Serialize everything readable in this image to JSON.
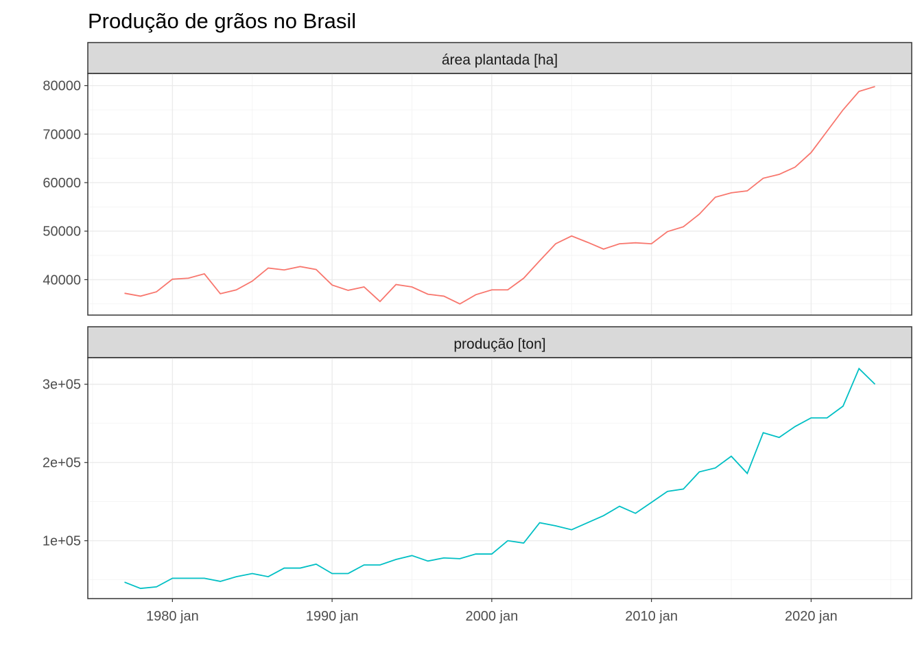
{
  "title": "Produção de grãos no Brasil",
  "chart_data": {
    "type": "line",
    "title": "Produção de grãos no Brasil",
    "xlabel": "",
    "ylabel": "",
    "x_tick_labels": [
      "1980 jan",
      "1990 jan",
      "2000 jan",
      "2010 jan",
      "2020 jan"
    ],
    "x_tick_years": [
      1980,
      1990,
      2000,
      2010,
      2020
    ],
    "xlim": [
      1974.7,
      2026.3
    ],
    "x": [
      1977,
      1978,
      1979,
      1980,
      1981,
      1982,
      1983,
      1984,
      1985,
      1986,
      1987,
      1988,
      1989,
      1990,
      1991,
      1992,
      1993,
      1994,
      1995,
      1996,
      1997,
      1998,
      1999,
      2000,
      2001,
      2002,
      2003,
      2004,
      2005,
      2006,
      2007,
      2008,
      2009,
      2010,
      2011,
      2012,
      2013,
      2014,
      2015,
      2016,
      2017,
      2018,
      2019,
      2020,
      2021,
      2022,
      2023,
      2024
    ],
    "grid": true,
    "legend": "none",
    "facets": [
      {
        "strip_label": "área plantada [ha]",
        "color": "#F8766D",
        "ylim": [
          32700,
          82500
        ],
        "y_tick_values": [
          40000,
          50000,
          60000,
          70000,
          80000
        ],
        "y_tick_labels": [
          "40000",
          "50000",
          "60000",
          "70000",
          "80000"
        ],
        "values": [
          37200,
          36600,
          37500,
          40100,
          40300,
          41200,
          37100,
          37900,
          39700,
          42400,
          42000,
          42700,
          42100,
          38900,
          37800,
          38500,
          35500,
          39000,
          38500,
          37000,
          36600,
          35000,
          36900,
          37900,
          37900,
          40300,
          43900,
          47400,
          49000,
          47700,
          46300,
          47400,
          47600,
          47400,
          49900,
          50900,
          53500,
          57000,
          57900,
          58300,
          60900,
          61700,
          63200,
          66200,
          70600,
          75000,
          78800,
          79800
        ]
      },
      {
        "strip_label": "produção [ton]",
        "color": "#00BFC4",
        "ylim": [
          26000,
          334000
        ],
        "y_tick_values": [
          100000,
          200000,
          300000
        ],
        "y_tick_labels": [
          "1e+05",
          "2e+05",
          "3e+05"
        ],
        "values": [
          47000,
          39000,
          41000,
          52000,
          52000,
          52000,
          48000,
          54000,
          58000,
          54000,
          65000,
          65000,
          70000,
          58000,
          58000,
          69000,
          69000,
          76000,
          81000,
          74000,
          78000,
          77000,
          83000,
          83000,
          100000,
          97000,
          123000,
          119000,
          114000,
          123000,
          132000,
          144000,
          135000,
          149000,
          163000,
          166000,
          188000,
          193000,
          208000,
          186000,
          238000,
          232000,
          246000,
          257000,
          257000,
          272000,
          320000,
          300000
        ]
      }
    ]
  }
}
